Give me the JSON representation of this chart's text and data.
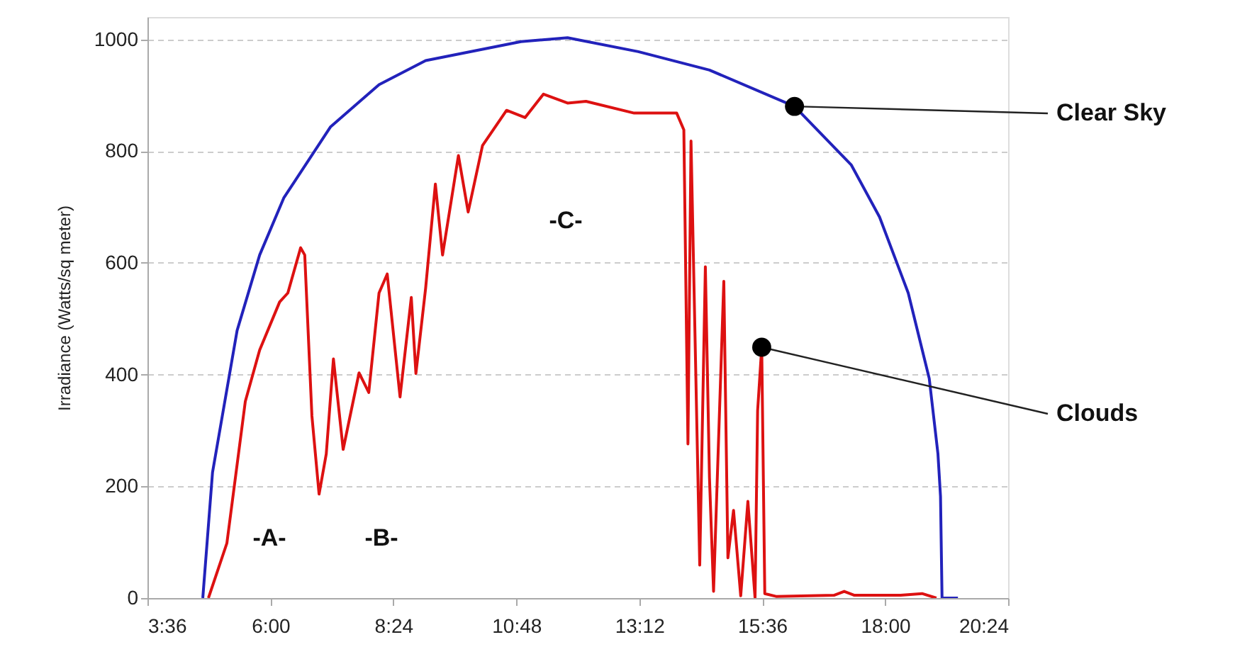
{
  "chart_data": {
    "type": "line",
    "ylabel": "Irradiance (Watts/sq meter)",
    "xlim": [
      3.6,
      20.4
    ],
    "ylim": [
      0,
      1040
    ],
    "xticks": [
      {
        "value": 3.6,
        "label": "3:36"
      },
      {
        "value": 6,
        "label": "6:00"
      },
      {
        "value": 8.4,
        "label": "8:24"
      },
      {
        "value": 10.8,
        "label": "10:48"
      },
      {
        "value": 13.2,
        "label": "13:12"
      },
      {
        "value": 15.6,
        "label": "15:36"
      },
      {
        "value": 18,
        "label": "18:00"
      },
      {
        "value": 20.4,
        "label": "20:24"
      }
    ],
    "yticks": [
      0,
      200,
      400,
      600,
      800,
      1000
    ],
    "grid": "y",
    "line_style": "solid",
    "marker": "none",
    "annotations": [
      "-A-",
      "-B-",
      "-C-"
    ],
    "series": [
      {
        "name": "Clear Sky",
        "color": "#2222bb",
        "x": [
          4.68,
          4.87,
          5.35,
          5.79,
          6.26,
          7.17,
          8.12,
          9.03,
          10.89,
          11.8,
          13.18,
          14.57,
          16.23,
          17.34,
          17.89,
          18.45,
          18.86,
          19.03,
          19.08,
          19.11,
          19.42
        ],
        "values": [
          0,
          225,
          479,
          614,
          716,
          843,
          919,
          962,
          996,
          1003,
          978,
          945,
          880,
          775,
          682,
          546,
          393,
          258,
          182,
          0,
          0
        ]
      },
      {
        "name": "Clouds",
        "color": "#dd1111",
        "x": [
          4.79,
          5.15,
          5.51,
          5.79,
          6.18,
          6.34,
          6.59,
          6.67,
          6.81,
          6.95,
          7.09,
          7.23,
          7.42,
          7.73,
          7.92,
          8.12,
          8.28,
          8.53,
          8.75,
          8.84,
          9.03,
          9.22,
          9.36,
          9.67,
          9.86,
          10.14,
          10.61,
          10.97,
          11.33,
          11.8,
          12.16,
          13.1,
          13.93,
          14.07,
          14.15,
          14.21,
          14.38,
          14.49,
          14.57,
          14.65,
          14.85,
          14.93,
          15.04,
          15.18,
          15.32,
          15.46,
          15.51,
          15.59,
          15.65,
          15.87,
          17.0,
          17.2,
          17.4,
          18.3,
          18.72,
          19.0
        ],
        "values": [
          0,
          98,
          352,
          444,
          530,
          546,
          627,
          614,
          326,
          186,
          258,
          428,
          266,
          403,
          368,
          546,
          580,
          360,
          538,
          402,
          555,
          741,
          614,
          792,
          691,
          810,
          873,
          860,
          902,
          886,
          889,
          868,
          868,
          838,
          276,
          818,
          59,
          593,
          216,
          12,
          567,
          72,
          157,
          4,
          173,
          0,
          335,
          449,
          8,
          3,
          5,
          12,
          5,
          5,
          8,
          0
        ]
      }
    ]
  }
}
